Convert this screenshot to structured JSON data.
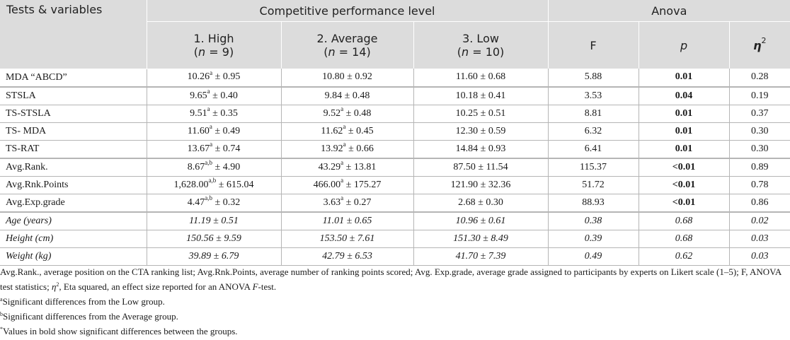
{
  "header": {
    "tests_variables": "Tests & variables",
    "group_title": "Competitive performance level",
    "anova_title": "Anova",
    "col_high": "1. High",
    "col_high_n": "(n = 9)",
    "col_avg": "2. Average",
    "col_avg_n": "(n = 14)",
    "col_low": "3. Low",
    "col_low_n": "(n = 10)",
    "col_f": "F",
    "col_p": "p",
    "col_eta": "η2"
  },
  "rows": [
    {
      "label": "MDA “ABCD”",
      "high": "10.26",
      "high_sup": "a",
      "high_sd": " ± 0.95",
      "avg": "10.80",
      "avg_sup": "",
      "avg_sd": " ± 0.92",
      "low": "11.60 ± 0.68",
      "f": "5.88",
      "p": "0.01",
      "eta": "0.28",
      "p_bold": true,
      "italic": false
    },
    {
      "label": "STSLA",
      "high": "9.65",
      "high_sup": "a",
      "high_sd": " ± 0.40",
      "avg": "9.84",
      "avg_sup": "",
      "avg_sd": " ± 0.48",
      "low": "10.18 ± 0.41",
      "f": "3.53",
      "p": "0.04",
      "eta": "0.19",
      "p_bold": true,
      "italic": false
    },
    {
      "label": "TS-STSLA",
      "high": "9.51",
      "high_sup": "a",
      "high_sd": " ± 0.35",
      "avg": "9.52",
      "avg_sup": "a",
      "avg_sd": " ± 0.48",
      "low": "10.25 ± 0.51",
      "f": "8.81",
      "p": "0.01",
      "eta": "0.37",
      "p_bold": true,
      "italic": false
    },
    {
      "label": "TS- MDA",
      "high": "11.60",
      "high_sup": "a",
      "high_sd": " ± 0.49",
      "avg": "11.62",
      "avg_sup": "a",
      "avg_sd": " ± 0.45",
      "low": "12.30 ± 0.59",
      "f": "6.32",
      "p": "0.01",
      "eta": "0.30",
      "p_bold": true,
      "italic": false
    },
    {
      "label": "TS-RAT",
      "high": "13.67",
      "high_sup": "a",
      "high_sd": " ± 0.74",
      "avg": "13.92",
      "avg_sup": "a",
      "avg_sd": " ± 0.66",
      "low": "14.84 ± 0.93",
      "f": "6.41",
      "p": "0.01",
      "eta": "0.30",
      "p_bold": true,
      "italic": false
    },
    {
      "label": "Avg.Rank.",
      "high": "8.67",
      "high_sup": "a,b",
      "high_sd": " ± 4.90",
      "avg": "43.29",
      "avg_sup": "a",
      "avg_sd": " ± 13.81",
      "low": "87.50 ± 11.54",
      "f": "115.37",
      "p": "<0.01",
      "eta": "0.89",
      "p_bold": true,
      "italic": false
    },
    {
      "label": "Avg.Rnk.Points",
      "high": "1,628.00",
      "high_sup": "a,b",
      "high_sd": " ± 615.04",
      "avg": "466.00",
      "avg_sup": "a",
      "avg_sd": " ± 175.27",
      "low": "121.90 ± 32.36",
      "f": "51.72",
      "p": "<0.01",
      "eta": "0.78",
      "p_bold": true,
      "italic": false
    },
    {
      "label": "Avg.Exp.grade",
      "high": "4.47",
      "high_sup": "a,b",
      "high_sd": " ± 0.32",
      "avg": "3.63",
      "avg_sup": "a",
      "avg_sd": " ± 0.27",
      "low": "2.68 ± 0.30",
      "f": "88.93",
      "p": "<0.01",
      "eta": "0.86",
      "p_bold": true,
      "italic": false
    },
    {
      "label": "Age (years)",
      "high": "11.19",
      "high_sup": "",
      "high_sd": " ± 0.51",
      "avg": "11.01",
      "avg_sup": "",
      "avg_sd": " ± 0.65",
      "low": "10.96 ± 0.61",
      "f": "0.38",
      "p": "0.68",
      "eta": "0.02",
      "p_bold": false,
      "italic": true
    },
    {
      "label": "Height (cm)",
      "high": "150.56",
      "high_sup": "",
      "high_sd": " ± 9.59",
      "avg": "153.50",
      "avg_sup": "",
      "avg_sd": " ± 7.61",
      "low": "151.30 ± 8.49",
      "f": "0.39",
      "p": "0.68",
      "eta": "0.03",
      "p_bold": false,
      "italic": true
    },
    {
      "label": "Weight (kg)",
      "high": "39.89",
      "high_sup": "",
      "high_sd": " ± 6.79",
      "avg": "42.79",
      "avg_sup": "",
      "avg_sd": " ± 6.53",
      "low": "41.70 ± 7.39",
      "f": "0.49",
      "p": "0.62",
      "eta": "0.03",
      "p_bold": false,
      "italic": true
    }
  ],
  "footnotes": {
    "abbreviations": "Avg.Rank., average position on the CTA ranking list; Avg.Rnk.Points, average number of ranking points scored; Avg. Exp.grade, average grade assigned to participants by experts on Likert scale (1–5); F, ANOVA test statistics; η2, Eta squared, an effect size reported for an ANOVA F-test.",
    "a_mark": "a",
    "a_text": "Significant differences from the Low group.",
    "b_mark": "b",
    "b_text": "Significant differences from the Average group.",
    "star_mark": "*",
    "star_text": "Values in bold show significant differences between the groups."
  }
}
